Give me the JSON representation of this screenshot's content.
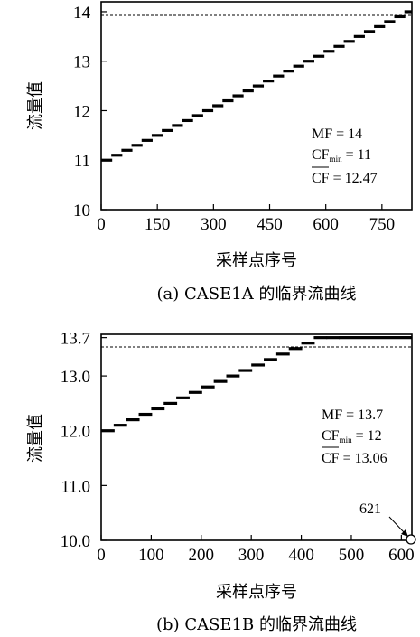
{
  "charts": [
    {
      "caption": "(a)  CASE1A 的临界流曲线",
      "xlabel": "采样点序号",
      "ylabel": "流量值",
      "xticks": [
        "0",
        "150",
        "300",
        "450",
        "600",
        "750"
      ],
      "yticks": [
        "10",
        "11",
        "12",
        "13",
        "14"
      ],
      "ref_label": "MF = 14",
      "annotations": {
        "mf": "MF = 14",
        "cfmin_prefix": "CF",
        "cfmin_sub": "min",
        "cfmin_value": " = 11",
        "cfbar": "CF",
        "cfbar_value": " = 12.47"
      }
    },
    {
      "caption": "(b)  CASE1B 的临界流曲线",
      "xlabel": "采样点序号",
      "ylabel": "流量值",
      "xticks": [
        "0",
        "100",
        "200",
        "300",
        "400",
        "500",
        "600"
      ],
      "yticks": [
        "10.0",
        "11.0",
        "12.0",
        "13.0",
        "13.7"
      ],
      "point_label": "621",
      "annotations": {
        "mf": "MF = 13.7",
        "cfmin_prefix": "CF",
        "cfmin_sub": "min",
        "cfmin_value": " = 12",
        "cfbar": "CF",
        "cfbar_value": " = 13.06"
      }
    }
  ],
  "chart_data": [
    {
      "type": "line",
      "title": "",
      "xlabel": "采样点序号",
      "ylabel": "流量值",
      "xlim": [
        0,
        830
      ],
      "ylim": [
        10,
        14.2
      ],
      "reference_line": 14,
      "grid": false,
      "series": [
        {
          "x": [
            0,
            27,
            54,
            81,
            108,
            135,
            162,
            189,
            216,
            243,
            270,
            297,
            324,
            351,
            378,
            405,
            432,
            459,
            486,
            513,
            540,
            567,
            594,
            621,
            648,
            675,
            702,
            729,
            756,
            783,
            810
          ],
          "y": [
            11.0,
            11.1,
            11.2,
            11.3,
            11.4,
            11.5,
            11.6,
            11.7,
            11.8,
            11.9,
            12.0,
            12.1,
            12.2,
            12.3,
            12.4,
            12.5,
            12.6,
            12.7,
            12.8,
            12.9,
            13.0,
            13.1,
            13.2,
            13.3,
            13.4,
            13.5,
            13.6,
            13.7,
            13.8,
            13.9,
            14.0
          ]
        }
      ]
    },
    {
      "type": "line",
      "title": "",
      "xlabel": "采样点序号",
      "ylabel": "流量值",
      "xlim": [
        0,
        621
      ],
      "ylim": [
        10,
        13.7
      ],
      "reference_line": 13.7,
      "grid": false,
      "series": [
        {
          "x": [
            0,
            25,
            50,
            75,
            100,
            125,
            150,
            175,
            200,
            225,
            250,
            275,
            300,
            325,
            350,
            375,
            400,
            425,
            450,
            475
          ],
          "y": [
            12.0,
            12.1,
            12.2,
            12.3,
            12.4,
            12.5,
            12.6,
            12.7,
            12.8,
            12.9,
            13.0,
            13.1,
            13.2,
            13.3,
            13.4,
            13.5,
            13.6,
            13.7,
            13.7,
            13.7
          ]
        }
      ],
      "highlight_point": {
        "x": 621,
        "y": 10.0,
        "label": "621"
      }
    }
  ]
}
